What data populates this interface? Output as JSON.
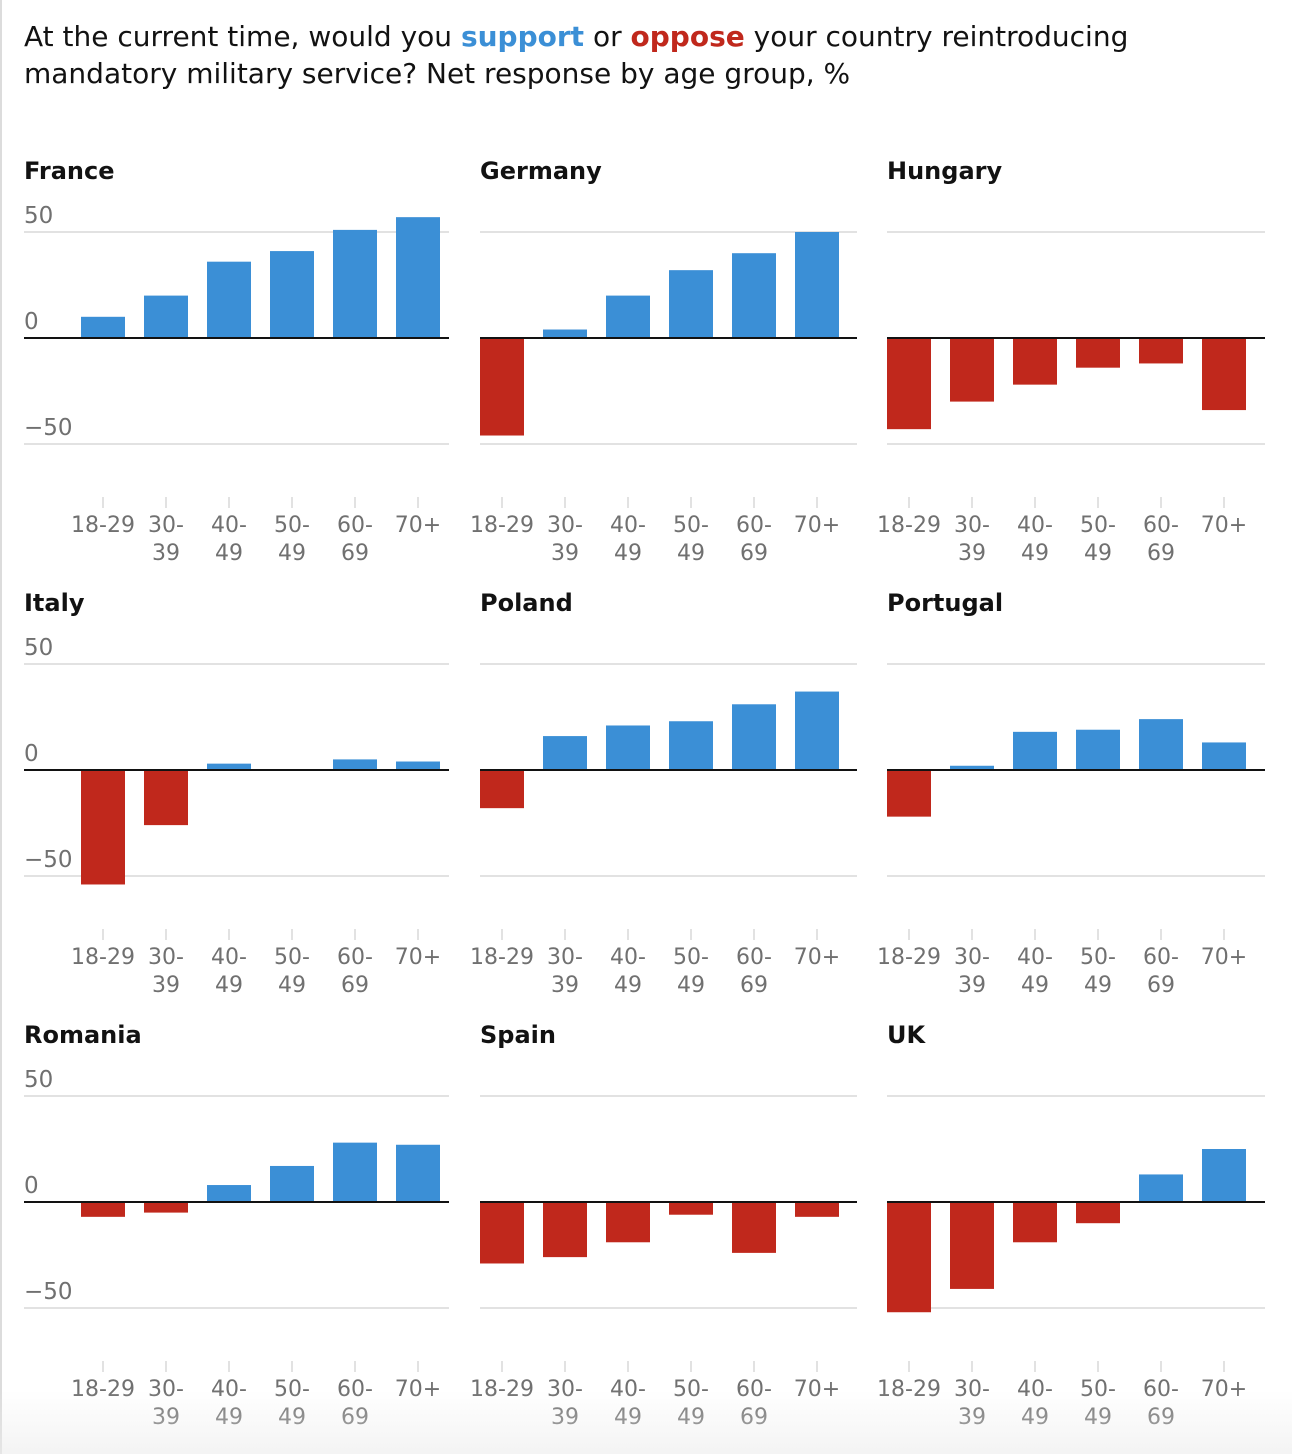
{
  "headline": {
    "part1": "At the current time, would you ",
    "support": "support",
    "part2": " or ",
    "oppose": "oppose",
    "part3": " your country reintroducing mandatory military service? Net response by age group, %"
  },
  "colors": {
    "support": "#3b8fd6",
    "oppose": "#c0281c",
    "grid": "#d8d8d8",
    "baseline": "#121212",
    "tick_text": "#707070"
  },
  "chart_data": {
    "type": "bar",
    "layout": "small-multiples",
    "categories": [
      "18-29",
      "30-39",
      "40-49",
      "50-49",
      "60-69",
      "70+"
    ],
    "category_labels": [
      [
        "18-29"
      ],
      [
        "30-",
        "39"
      ],
      [
        "40-",
        "49"
      ],
      [
        "50-",
        "49"
      ],
      [
        "60-",
        "69"
      ],
      [
        "70+"
      ]
    ],
    "ylim": [
      -50,
      50
    ],
    "yticks": [
      50,
      0,
      -50
    ],
    "ytick_labels": [
      "50",
      "0",
      "−50"
    ],
    "panels": [
      {
        "title": "France",
        "values": [
          10,
          20,
          36,
          41,
          51,
          57
        ]
      },
      {
        "title": "Germany",
        "values": [
          -46,
          4,
          20,
          32,
          40,
          50
        ]
      },
      {
        "title": "Hungary",
        "values": [
          -43,
          -30,
          -22,
          -14,
          -12,
          -34
        ]
      },
      {
        "title": "Italy",
        "values": [
          -54,
          -26,
          3,
          0,
          5,
          4
        ]
      },
      {
        "title": "Poland",
        "values": [
          -18,
          16,
          21,
          23,
          31,
          37
        ]
      },
      {
        "title": "Portugal",
        "values": [
          -22,
          2,
          18,
          19,
          24,
          13
        ]
      },
      {
        "title": "Romania",
        "values": [
          -7,
          -5,
          8,
          17,
          28,
          27
        ]
      },
      {
        "title": "Spain",
        "values": [
          -29,
          -26,
          -19,
          -6,
          -24,
          -7
        ]
      },
      {
        "title": "UK",
        "values": [
          -52,
          -41,
          -19,
          -10,
          13,
          25
        ]
      }
    ]
  }
}
